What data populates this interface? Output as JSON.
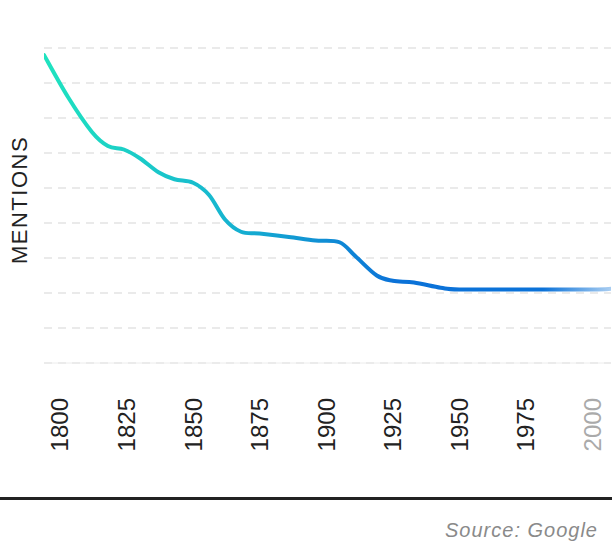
{
  "chart_data": {
    "type": "line",
    "y_label": "MENTIONS",
    "source": "Source: Google",
    "x": [
      1794,
      1803,
      1812,
      1818,
      1824,
      1830,
      1837,
      1843,
      1850,
      1856,
      1862,
      1868,
      1875,
      1886,
      1896,
      1905,
      1911,
      1919,
      1925,
      1933,
      1943,
      1950,
      1975,
      2000,
      2007
    ],
    "values": [
      8.8,
      7.6,
      6.6,
      6.2,
      6.1,
      5.85,
      5.45,
      5.25,
      5.15,
      4.8,
      4.1,
      3.75,
      3.7,
      3.6,
      3.5,
      3.45,
      3.05,
      2.5,
      2.35,
      2.3,
      2.15,
      2.1,
      2.1,
      2.1,
      2.12
    ],
    "color": "#0b72d8",
    "xlim": [
      1794,
      2007
    ],
    "xticks": [
      1800,
      1825,
      1850,
      1875,
      1900,
      1925,
      1950,
      1975,
      2000
    ],
    "ylim": [
      0,
      9
    ],
    "yticks": [
      0,
      1,
      2,
      3,
      4,
      5,
      6,
      7,
      8,
      9
    ],
    "grid": true,
    "tick_labels": "x"
  }
}
